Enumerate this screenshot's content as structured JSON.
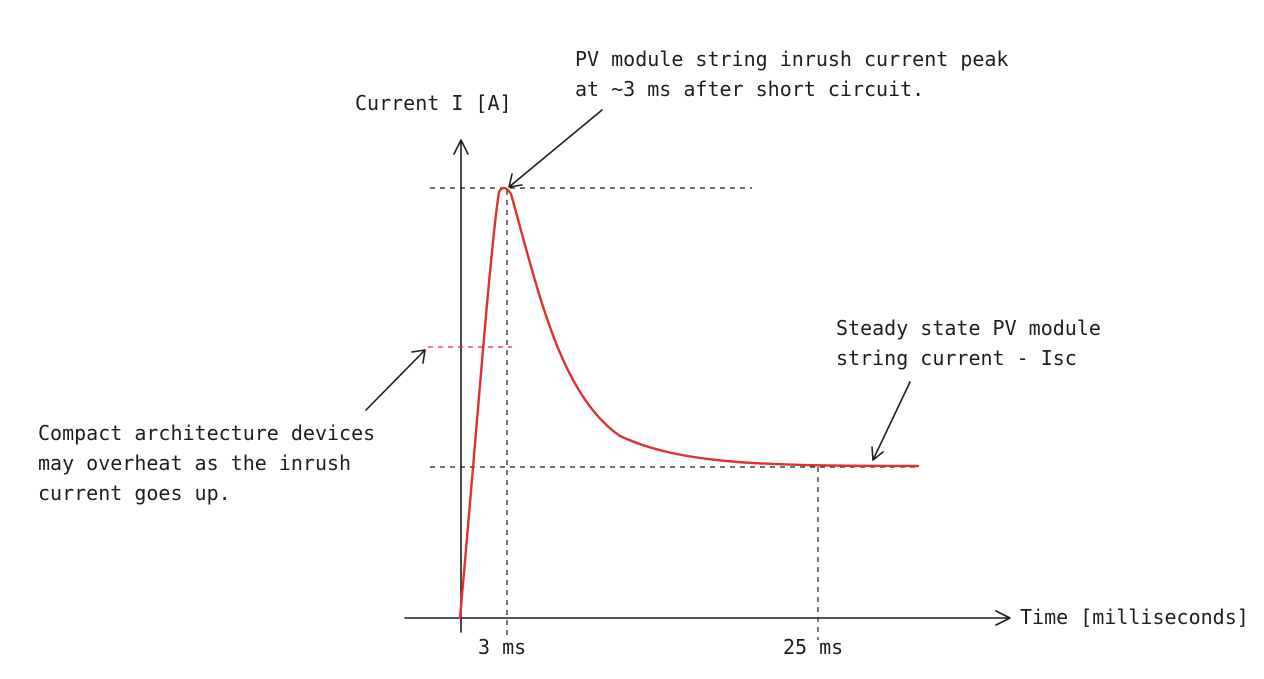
{
  "y_axis_label": "Current I [A]",
  "x_axis_label": "Time [milliseconds]",
  "x_labels": [
    "3 ms",
    "25 ms"
  ],
  "peak_note": [
    "PV module string inrush current peak",
    "at ~3 ms after short circuit."
  ],
  "steady_note": [
    "Steady state PV module",
    "string current - Isc"
  ],
  "compact_note": [
    "Compact architecture devices",
    "may overheat as the inrush",
    "current goes up."
  ]
}
